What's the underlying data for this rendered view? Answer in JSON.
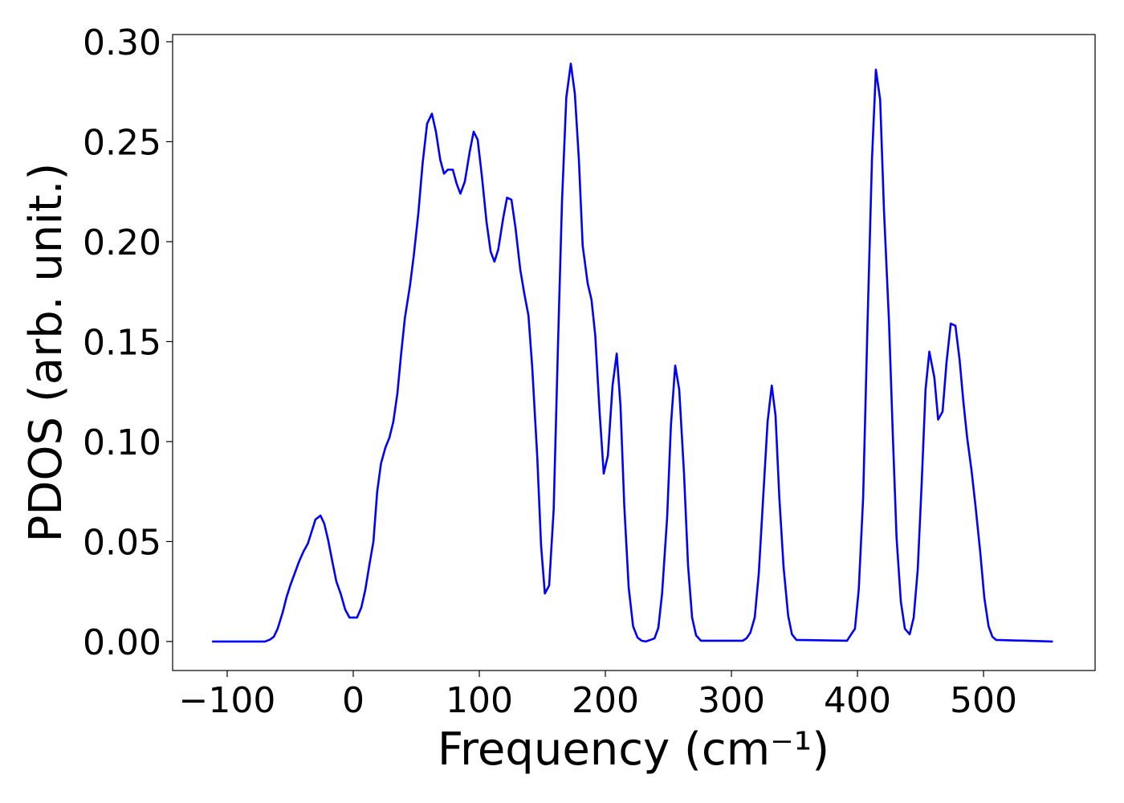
{
  "chart_data": {
    "type": "line",
    "xlabel": "Frequency (cm⁻¹)",
    "ylabel": "PDOS (arb. unit.)",
    "x": [
      -112,
      -90,
      -70,
      -66,
      -63,
      -60,
      -56,
      -53,
      -50,
      -46.5,
      -43,
      -39.5,
      -36,
      -33,
      -30,
      -26,
      -23,
      -20,
      -16.6,
      -13.4,
      -10,
      -6.4,
      -3,
      0,
      3,
      6.4,
      9.6,
      12.7,
      16,
      19,
      22,
      25.5,
      28.7,
      31.8,
      35,
      38,
      41,
      45,
      48,
      51.6,
      55,
      58.6,
      62.4,
      65.6,
      69,
      72,
      75,
      79,
      82,
      85,
      88.5,
      92.4,
      95.5,
      98.7,
      102,
      105.7,
      109,
      112,
      115,
      119,
      122,
      125.5,
      128.7,
      132.5,
      135.7,
      139,
      142,
      146,
      149,
      152,
      155.4,
      159,
      162.4,
      165.6,
      169,
      172.6,
      175.8,
      179,
      182,
      186,
      189,
      192,
      195.5,
      198.7,
      202,
      205.7,
      209,
      212,
      215,
      218.5,
      222,
      225.5,
      228.7,
      232,
      235.7,
      239,
      242,
      245,
      249,
      252,
      255.4,
      258.6,
      262.4,
      265.6,
      268.8,
      272,
      275.8,
      309,
      312,
      315,
      318.5,
      321.7,
      325,
      328.7,
      332,
      335,
      338,
      341.4,
      345,
      348,
      351.6,
      391.7,
      395,
      398,
      401,
      404.5,
      408,
      411.5,
      414.6,
      418,
      421,
      425,
      428,
      431,
      434.4,
      437.6,
      441.4,
      444.6,
      447.8,
      451,
      454,
      457,
      461,
      464,
      467.5,
      470.7,
      474,
      477.7,
      481,
      484,
      487,
      490.4,
      493.6,
      497.5,
      500.6,
      504,
      507,
      510,
      555
    ],
    "values": [
      0,
      0,
      0,
      0.001,
      0.0024,
      0.0064,
      0.0145,
      0.022,
      0.028,
      0.034,
      0.04,
      0.045,
      0.049,
      0.055,
      0.061,
      0.063,
      0.059,
      0.051,
      0.04,
      0.03,
      0.024,
      0.016,
      0.012,
      0.012,
      0.012,
      0.017,
      0.026,
      0.038,
      0.05,
      0.075,
      0.089,
      0.097,
      0.102,
      0.11,
      0.124,
      0.144,
      0.162,
      0.178,
      0.193,
      0.214,
      0.239,
      0.259,
      0.264,
      0.255,
      0.241,
      0.234,
      0.236,
      0.236,
      0.229,
      0.224,
      0.23,
      0.245,
      0.255,
      0.251,
      0.233,
      0.21,
      0.195,
      0.19,
      0.196,
      0.212,
      0.222,
      0.221,
      0.207,
      0.186,
      0.174,
      0.163,
      0.137,
      0.092,
      0.048,
      0.024,
      0.028,
      0.066,
      0.148,
      0.22,
      0.272,
      0.289,
      0.274,
      0.241,
      0.198,
      0.179,
      0.171,
      0.153,
      0.114,
      0.084,
      0.093,
      0.128,
      0.144,
      0.118,
      0.068,
      0.027,
      0.0076,
      0.002,
      0.0004,
      0,
      0.0008,
      0.0016,
      0.0068,
      0.024,
      0.062,
      0.108,
      0.138,
      0.126,
      0.084,
      0.038,
      0.012,
      0.003,
      0.0004,
      0.0004,
      0.0016,
      0.0044,
      0.012,
      0.034,
      0.07,
      0.11,
      0.128,
      0.113,
      0.072,
      0.037,
      0.013,
      0.0036,
      0.0008,
      0.0004,
      0.0036,
      0.0064,
      0.026,
      0.072,
      0.16,
      0.241,
      0.286,
      0.271,
      0.216,
      0.16,
      0.104,
      0.052,
      0.02,
      0.0064,
      0.0036,
      0.012,
      0.036,
      0.08,
      0.126,
      0.145,
      0.132,
      0.111,
      0.115,
      0.14,
      0.159,
      0.158,
      0.141,
      0.12,
      0.102,
      0.086,
      0.068,
      0.044,
      0.022,
      0.0076,
      0.0024,
      0.0008,
      0
    ],
    "color": "#0000ff",
    "xlim": [
      -143.3,
      588.5
    ],
    "ylim": [
      -0.0145,
      0.3036
    ],
    "xticks": [
      {
        "value": -100,
        "label": "−100"
      },
      0,
      100,
      200,
      300,
      400,
      500
    ],
    "yticks": [
      {
        "value": 0,
        "label": "0.00"
      },
      0.05,
      {
        "value": 0.1,
        "label": "0.10"
      },
      0.15,
      {
        "value": 0.2,
        "label": "0.20"
      },
      0.25,
      {
        "value": 0.3,
        "label": "0.30"
      }
    ]
  }
}
